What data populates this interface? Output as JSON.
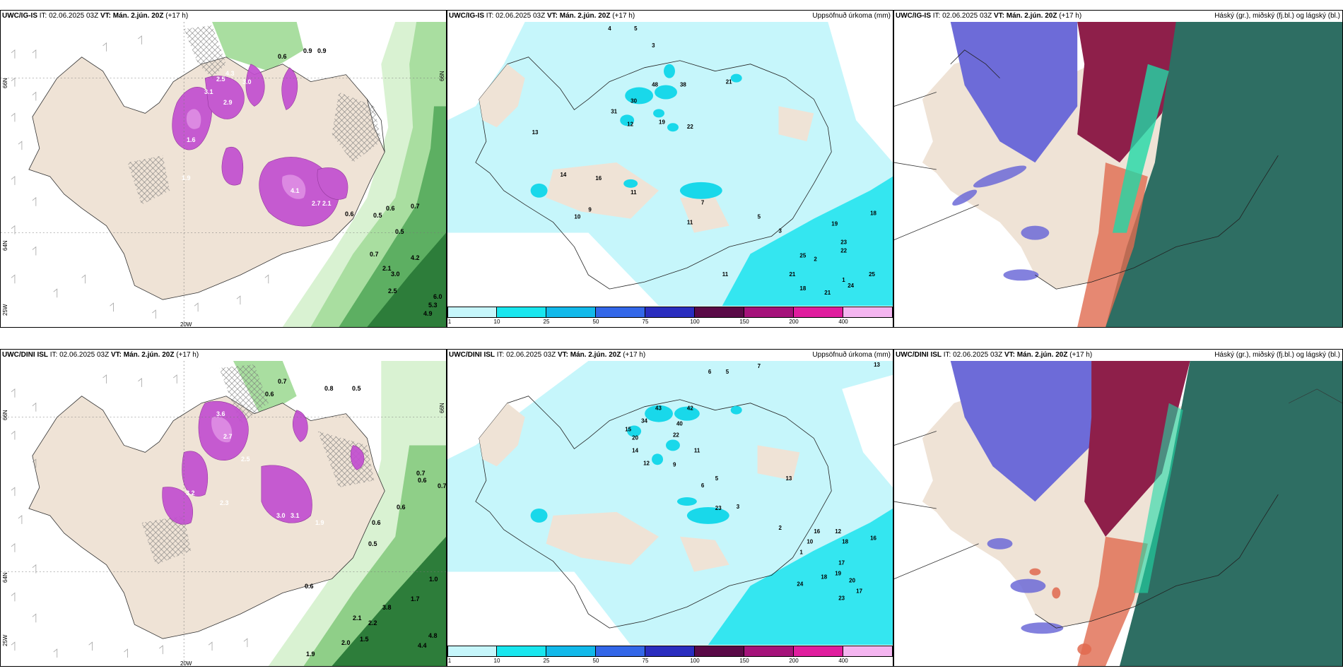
{
  "colors": {
    "land": "#efe3d6",
    "precip_pink": "#c24fd0",
    "precip_light": "#e39ae8",
    "green_light": "#c8ecc0",
    "green_mid": "#8fcf88",
    "green_dark": "#2d7d3a",
    "cyan_light": "#c6f6fb",
    "cyan_mid": "#34e6f0",
    "cloud_high": "#6d6bd8",
    "cloud_mid": "#8e1f4a",
    "cloud_low": "#2e6e63",
    "cloud_orange": "#e06a4f"
  },
  "panels": [
    {
      "model": "UWC/IG-IS",
      "it_label": "IT:",
      "it_value": "02.06.2025 03Z",
      "vt_label": "VT:",
      "vt_value": "Mán. 2.jún. 20Z",
      "lead": "(+17 h)",
      "lat_labels": [
        "66N",
        "64N",
        "25W"
      ],
      "lon_label": "20W",
      "lat_right": "66N",
      "values": [
        "0.6",
        "0.9",
        "0.9",
        "3.1",
        "2.9",
        "2.5",
        "4.3",
        "3.0",
        "1.6",
        "1.9",
        "4.1",
        "2.7",
        "2.1",
        "0.6",
        "0.5",
        "0.6",
        "0.7",
        "0.5",
        "0.7",
        "2.1",
        "3.0",
        "4.2",
        "2.5",
        "6.0",
        "5.3",
        "4.9"
      ]
    },
    {
      "model": "UWC/IG-IS",
      "it_label": "IT:",
      "it_value": "02.06.2025 03Z",
      "vt_label": "VT:",
      "vt_value": "Mán. 2.jún. 20Z",
      "lead": "(+17 h)",
      "right_title": "Uppsöfnuð úrkoma (mm)",
      "values": [
        "4",
        "5",
        "3",
        "30",
        "48",
        "38",
        "21",
        "31",
        "12",
        "19",
        "22",
        "13",
        "16",
        "11",
        "14",
        "10",
        "9",
        "7",
        "5",
        "3",
        "2",
        "1",
        "11",
        "19",
        "18",
        "23",
        "22",
        "25",
        "21",
        "18",
        "21",
        "24",
        "25",
        "11"
      ],
      "colorbar": {
        "labels": [
          "1",
          "10",
          "25",
          "50",
          "75",
          "100",
          "150",
          "200",
          "400"
        ],
        "colors": [
          "#c6f6fb",
          "#19e6ee",
          "#12b9ea",
          "#3367e8",
          "#2a2dbf",
          "#5a0a47",
          "#a5127a",
          "#e01d9e",
          "#f4b5f0"
        ]
      }
    },
    {
      "model": "UWC/IG-IS",
      "it_label": "IT:",
      "it_value": "02.06.2025 03Z",
      "vt_label": "VT:",
      "vt_value": "Mán. 2.jún. 20Z",
      "lead": "(+17 h)",
      "right_title": "Háský (gr.), miðský (fj.bl.) og lágský (bl.)"
    },
    {
      "model": "UWC/DINI ISL",
      "it_label": "IT:",
      "it_value": "02.06.2025 03Z",
      "vt_label": "VT:",
      "vt_value": "Mán. 2.jún. 20Z",
      "lead": "(+17 h)",
      "lat_labels": [
        "66N",
        "64N",
        "25W"
      ],
      "lon_label": "20W",
      "lat_right": "66N",
      "values": [
        "0.7",
        "0.6",
        "0.8",
        "0.5",
        "3.6",
        "2.7",
        "2.5",
        "3.2",
        "2.3",
        "3.0",
        "3.1",
        "1.9",
        "0.6",
        "0.6",
        "0.7",
        "0.5",
        "0.6",
        "0.6",
        "0.7",
        "1.0",
        "1.7",
        "3.8",
        "2.2",
        "2.1",
        "1.9",
        "2.0",
        "1.5",
        "4.4",
        "4.8"
      ]
    },
    {
      "model": "UWC/DINI ISL",
      "it_label": "IT:",
      "it_value": "02.06.2025 03Z",
      "vt_label": "VT:",
      "vt_value": "Mán. 2.jún. 20Z",
      "lead": "(+17 h)",
      "right_title": "Uppsöfnuð úrkoma (mm)",
      "values": [
        "7",
        "6",
        "5",
        "13",
        "43",
        "42",
        "34",
        "40",
        "22",
        "15",
        "20",
        "14",
        "11",
        "12",
        "9",
        "6",
        "5",
        "3",
        "2",
        "1",
        "23",
        "16",
        "12",
        "18",
        "10",
        "17",
        "19",
        "20",
        "24",
        "18",
        "17",
        "23",
        "13",
        "16"
      ],
      "colorbar": {
        "labels": [
          "1",
          "10",
          "25",
          "50",
          "75",
          "100",
          "150",
          "200",
          "400"
        ],
        "colors": [
          "#c6f6fb",
          "#19e6ee",
          "#12b9ea",
          "#3367e8",
          "#2a2dbf",
          "#5a0a47",
          "#a5127a",
          "#e01d9e",
          "#f4b5f0"
        ]
      }
    },
    {
      "model": "UWC/DINI ISL",
      "it_label": "IT:",
      "it_value": "02.06.2025 03Z",
      "vt_label": "VT:",
      "vt_value": "Mán. 2.jún. 20Z",
      "lead": "(+17 h)",
      "right_title": "Háský (gr.), miðský (fj.bl.) og lágský (bl.)"
    }
  ]
}
